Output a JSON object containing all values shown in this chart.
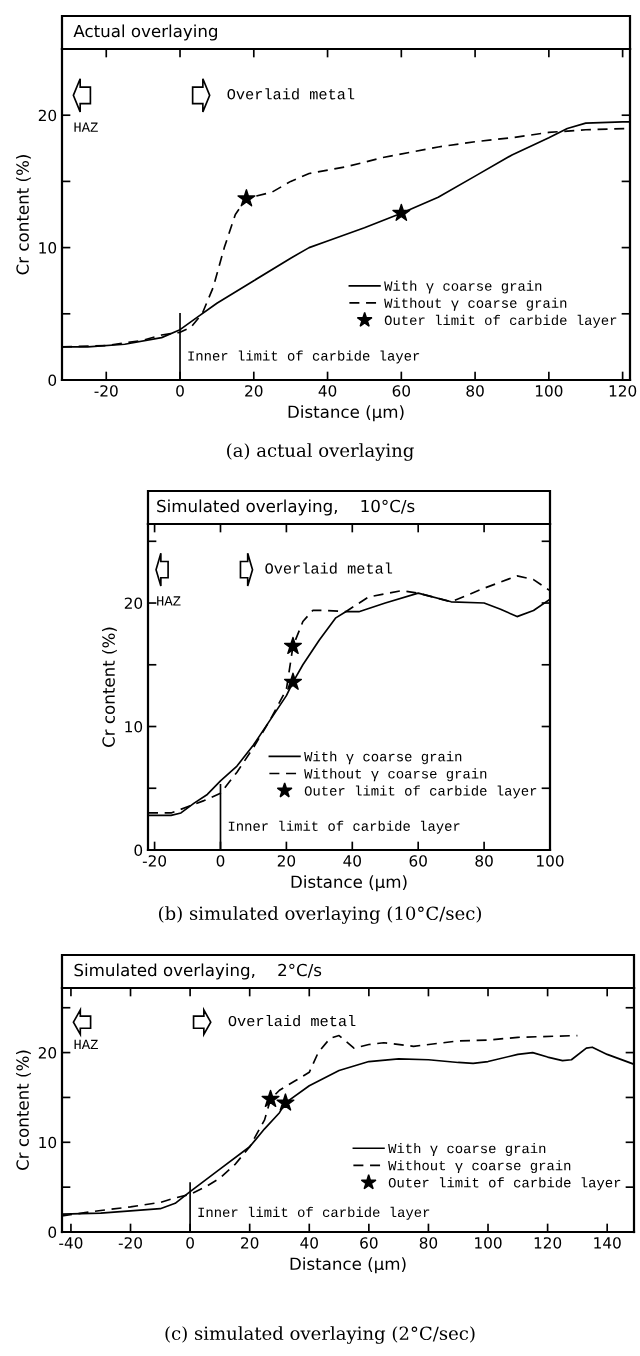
{
  "chart_data": [
    {
      "type": "line",
      "title": "Actual overlaying",
      "xlabel": "Distance (μm)",
      "ylabel": "Cr content (%)",
      "xlim": [
        -32,
        122
      ],
      "xticks": [
        -20,
        0,
        20,
        40,
        60,
        80,
        100,
        120
      ],
      "ylim": [
        0,
        25
      ],
      "yticks": [
        0,
        {
          "value": 5,
          "label": null
        },
        10,
        {
          "value": 15,
          "label": null
        },
        20
      ],
      "grid": false,
      "legend": "lower right",
      "annotations": [
        "HAZ",
        "Overlaid metal",
        "(a) actual overlaying"
      ],
      "ref_lines": [
        {
          "axis": "x",
          "value": 0,
          "label": "Inner limit of carbide layer",
          "color": "#000000"
        }
      ],
      "series": [
        {
          "name": "With γ coarse grain",
          "color": "#000000",
          "line_style": "solid",
          "x": [
            -32,
            -25,
            -15,
            -5,
            0,
            5,
            10,
            20,
            30,
            35,
            40,
            50,
            60,
            70,
            80,
            90,
            100,
            105,
            110,
            120,
            122
          ],
          "values": [
            2.5,
            2.5,
            2.7,
            3.2,
            3.8,
            4.8,
            5.8,
            7.5,
            9.2,
            10,
            10.5,
            11.5,
            12.6,
            13.8,
            15.4,
            17,
            18.3,
            19,
            19.4,
            19.5,
            19.5
          ]
        },
        {
          "name": "Without γ coarse grain",
          "color": "#000000",
          "line_style": "dashed",
          "x": [
            -32,
            -20,
            -10,
            -5,
            0,
            3,
            6,
            9,
            12,
            15,
            18,
            25,
            30,
            35,
            45,
            55,
            70,
            80,
            90,
            100,
            110,
            122
          ],
          "values": [
            2.5,
            2.6,
            3.0,
            3.4,
            3.6,
            4.0,
            5.0,
            7,
            10,
            12.5,
            13.7,
            14.2,
            15,
            15.6,
            16.1,
            16.8,
            17.6,
            18,
            18.3,
            18.7,
            18.9,
            19.0
          ]
        },
        {
          "name": "Outer limit of carbide layer",
          "type": "scatter",
          "marker": "star",
          "color": "#000000",
          "x": [
            18,
            60
          ],
          "values": [
            13.7,
            12.6
          ]
        }
      ]
    },
    {
      "type": "line",
      "title": "Simulated overlaying,    10°C/s",
      "xlabel": "Distance (μm)",
      "ylabel": "Cr content (%)",
      "xlim": [
        -22,
        100
      ],
      "xticks": [
        -20,
        0,
        20,
        40,
        60,
        80,
        100
      ],
      "ylim": [
        0,
        26.4
      ],
      "yticks": [
        0,
        {
          "value": 5,
          "label": null
        },
        10,
        {
          "value": 15,
          "label": null
        },
        20,
        {
          "value": 25,
          "label": null
        }
      ],
      "grid": false,
      "legend": "lower right",
      "annotations": [
        "HAZ",
        "Overlaid metal",
        "(b) simulated overlaying (10°C/sec)"
      ],
      "ref_lines": [
        {
          "axis": "x",
          "value": 0,
          "label": "Inner limit of carbide layer",
          "color": "#000000"
        }
      ],
      "series": [
        {
          "name": "With γ coarse grain",
          "color": "#000000",
          "line_style": "solid",
          "x": [
            -22,
            -15,
            -12,
            -8,
            -4,
            0,
            5,
            10,
            15,
            20,
            22,
            25,
            30,
            35,
            38,
            42,
            50,
            60,
            70,
            80,
            85,
            90,
            95,
            100
          ],
          "values": [
            2.8,
            2.8,
            3,
            3.8,
            4.5,
            5.6,
            6.8,
            8.5,
            10.5,
            12.5,
            13.6,
            15,
            17,
            18.8,
            19.3,
            19.3,
            20,
            20.8,
            20.1,
            20,
            19.5,
            18.9,
            19.4,
            20.3
          ]
        },
        {
          "name": "Without γ coarse grain",
          "color": "#000000",
          "line_style": "dashed",
          "x": [
            -22,
            -15,
            -10,
            -5,
            0,
            5,
            10,
            15,
            20,
            22,
            25,
            28,
            32,
            38,
            45,
            55,
            60,
            70,
            80,
            90,
            95,
            100
          ],
          "values": [
            3,
            3,
            3.5,
            4,
            4.6,
            6.3,
            8.3,
            10.5,
            13,
            16.5,
            18.5,
            19.4,
            19.4,
            19.3,
            20.5,
            21,
            20.8,
            20.1,
            21.2,
            22.2,
            21.9,
            21
          ]
        },
        {
          "name": "Outer limit of carbide layer",
          "type": "scatter",
          "marker": "star",
          "color": "#000000",
          "x": [
            22,
            22
          ],
          "values": [
            16.5,
            13.6
          ]
        }
      ]
    },
    {
      "type": "line",
      "title": "Simulated overlaying,    2°C/s",
      "xlabel": "Distance (μm)",
      "ylabel": "Cr content (%)",
      "xlim": [
        -43,
        149
      ],
      "xticks": [
        -40,
        -20,
        0,
        20,
        40,
        60,
        80,
        100,
        120,
        140
      ],
      "ylim": [
        0,
        27.2
      ],
      "yticks": [
        0,
        {
          "value": 5,
          "label": null
        },
        10,
        {
          "value": 15,
          "label": null
        },
        20,
        {
          "value": 25,
          "label": null
        }
      ],
      "grid": false,
      "legend": "lower right",
      "annotations": [
        "HAZ",
        "Overlaid metal",
        "(c) simulated overlaying (2°C/sec)"
      ],
      "ref_lines": [
        {
          "axis": "x",
          "value": 0,
          "label": "Inner limit of carbide layer",
          "color": "#000000"
        }
      ],
      "series": [
        {
          "name": "With γ coarse grain",
          "color": "#000000",
          "line_style": "solid",
          "x": [
            -43,
            -30,
            -10,
            -5,
            0,
            10,
            20,
            25,
            30,
            32,
            40,
            50,
            60,
            70,
            80,
            90,
            95,
            100,
            110,
            115,
            120,
            125,
            128,
            133,
            135,
            140,
            149
          ],
          "values": [
            2,
            2.1,
            2.6,
            3.2,
            4.5,
            7,
            9.5,
            11.5,
            13.3,
            14.4,
            16.3,
            18,
            19,
            19.3,
            19.2,
            18.9,
            18.8,
            19,
            19.8,
            20,
            19.5,
            19.1,
            19.2,
            20.5,
            20.6,
            19.8,
            18.7
          ]
        },
        {
          "name": "Without γ coarse grain",
          "color": "#000000",
          "line_style": "dashed",
          "x": [
            -43,
            -30,
            -20,
            -10,
            -5,
            0,
            5,
            10,
            15,
            20,
            25,
            27,
            30,
            35,
            40,
            43,
            47,
            50,
            55,
            60,
            65,
            75,
            90,
            100,
            110,
            130
          ],
          "values": [
            1.8,
            2.4,
            2.8,
            3.3,
            3.8,
            4.2,
            5,
            6,
            7.5,
            9.5,
            12.5,
            14.8,
            15.8,
            16.8,
            17.8,
            20,
            21.6,
            21.9,
            20.5,
            20.9,
            21.1,
            20.7,
            21.3,
            21.4,
            21.7,
            21.9
          ]
        },
        {
          "name": "Outer limit of carbide layer",
          "type": "scatter",
          "marker": "star",
          "color": "#000000",
          "x": [
            27,
            32
          ],
          "values": [
            14.8,
            14.4
          ]
        }
      ]
    }
  ]
}
